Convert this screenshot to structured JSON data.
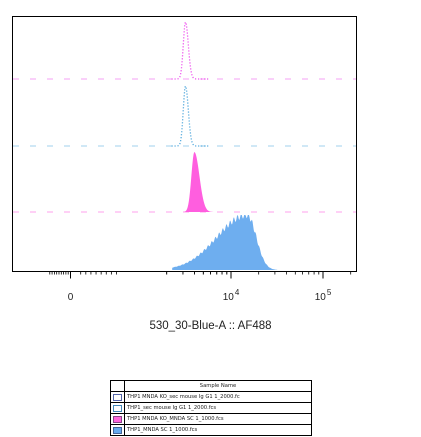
{
  "chart_data": {
    "type": "histogram-overlay",
    "xlabel": "530_30-Blue-A :: AF488",
    "x_scale": "biexponential",
    "xticks": [
      {
        "value": 0,
        "label": "0",
        "exponent": ""
      },
      {
        "value": 10000,
        "label": "10",
        "exponent": "4"
      },
      {
        "value": 100000,
        "label": "10",
        "exponent": "5"
      }
    ],
    "series": [
      {
        "name": "THP1 MNDA KO_sec mouse Ig G1 1_2000.fcs",
        "style": "dotted",
        "color": "#ee55ee",
        "peak_x": 3200
      },
      {
        "name": "THP1_sec mouse Ig G1 1_2000.fcs",
        "style": "dotted",
        "color": "#55aadd",
        "peak_x": 3200
      },
      {
        "name": "THP1 MNDA KO_MNDA SC 1_1000.fcs",
        "style": "filled",
        "color": "#ff55dd",
        "peak_x": 4000
      },
      {
        "name": "THP1_MNDA SC 1_1000.fcs",
        "style": "filled",
        "color": "#66aaee",
        "peak_x": 15000
      }
    ],
    "legend": {
      "header": "Sample Name",
      "placement": "bottom",
      "rows": [
        {
          "label": "THP1 MNDA KO_sec mouse Ig G1 1_2000.fc",
          "swatch": "#ffffff",
          "swatch_border": "#5566aa"
        },
        {
          "label": "THP1_sec mouse Ig G1 1_2000.fcs",
          "swatch": "#ffffff",
          "swatch_border": "#4488bb"
        },
        {
          "label": "THP1 MNDA KO_MNDA SC 1_1000.fcs",
          "swatch": "#ff66dd",
          "swatch_border": "#884488"
        },
        {
          "label": "THP1_MNDA SC 1_1000.fcs",
          "swatch": "#66aaee",
          "swatch_border": "#446699"
        }
      ]
    }
  }
}
